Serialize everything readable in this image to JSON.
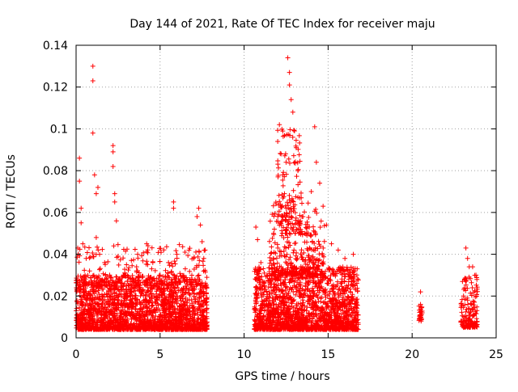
{
  "chart_data": {
    "type": "scatter",
    "title": "Day 144 of 2021, Rate Of TEC Index for receiver maju",
    "xlabel": "GPS time / hours",
    "ylabel": "ROTI / TECUs",
    "xlim": [
      0,
      25
    ],
    "ylim": [
      0,
      0.14
    ],
    "xticks": [
      0,
      5,
      10,
      15,
      20,
      25
    ],
    "xtick_labels": [
      "0",
      "5",
      "10",
      "15",
      "20",
      "25"
    ],
    "yticks": [
      0,
      0.02,
      0.04,
      0.06,
      0.08,
      0.1,
      0.12,
      0.14
    ],
    "ytick_labels": [
      "0",
      "0.02",
      "0.04",
      "0.06",
      "0.08",
      "0.1",
      "0.12",
      "0.14"
    ],
    "grid": true,
    "marker": "+",
    "color": "#ff0000",
    "series": [
      {
        "name": "ROTI",
        "points": [
          [
            0.1,
            0.043
          ],
          [
            0.2,
            0.086
          ],
          [
            0.2,
            0.075
          ],
          [
            0.3,
            0.062
          ],
          [
            0.3,
            0.055
          ],
          [
            0.4,
            0.045
          ],
          [
            0.6,
            0.038
          ],
          [
            0.8,
            0.032
          ],
          [
            1.0,
            0.13
          ],
          [
            1.0,
            0.123
          ],
          [
            1.0,
            0.098
          ],
          [
            1.1,
            0.078
          ],
          [
            1.2,
            0.069
          ],
          [
            1.3,
            0.072
          ],
          [
            1.2,
            0.048
          ],
          [
            1.4,
            0.04
          ],
          [
            1.7,
            0.036
          ],
          [
            2.0,
            0.03
          ],
          [
            2.2,
            0.092
          ],
          [
            2.2,
            0.089
          ],
          [
            2.2,
            0.082
          ],
          [
            2.3,
            0.069
          ],
          [
            2.3,
            0.065
          ],
          [
            2.4,
            0.056
          ],
          [
            2.5,
            0.039
          ],
          [
            3.0,
            0.035
          ],
          [
            3.3,
            0.025
          ],
          [
            3.6,
            0.034
          ],
          [
            4.2,
            0.045
          ],
          [
            4.5,
            0.033
          ],
          [
            5.0,
            0.03
          ],
          [
            5.5,
            0.036
          ],
          [
            5.8,
            0.065
          ],
          [
            5.8,
            0.062
          ],
          [
            6.0,
            0.04
          ],
          [
            6.5,
            0.033
          ],
          [
            7.0,
            0.038
          ],
          [
            7.2,
            0.058
          ],
          [
            7.3,
            0.062
          ],
          [
            7.4,
            0.054
          ],
          [
            7.5,
            0.046
          ],
          [
            7.6,
            0.038
          ],
          [
            10.7,
            0.053
          ],
          [
            10.8,
            0.047
          ],
          [
            11.0,
            0.036
          ],
          [
            11.2,
            0.031
          ],
          [
            11.6,
            0.037
          ],
          [
            11.8,
            0.052
          ],
          [
            12.0,
            0.094
          ],
          [
            12.1,
            0.102
          ],
          [
            12.2,
            0.088
          ],
          [
            12.3,
            0.078
          ],
          [
            12.4,
            0.069
          ],
          [
            12.5,
            0.084
          ],
          [
            12.6,
            0.134
          ],
          [
            12.7,
            0.127
          ],
          [
            12.7,
            0.121
          ],
          [
            12.8,
            0.114
          ],
          [
            12.9,
            0.108
          ],
          [
            13.0,
            0.099
          ],
          [
            13.1,
            0.091
          ],
          [
            13.2,
            0.08
          ],
          [
            13.4,
            0.067
          ],
          [
            13.5,
            0.058
          ],
          [
            13.6,
            0.05
          ],
          [
            13.8,
            0.042
          ],
          [
            14.0,
            0.07
          ],
          [
            14.2,
            0.101
          ],
          [
            14.3,
            0.084
          ],
          [
            14.5,
            0.074
          ],
          [
            14.7,
            0.063
          ],
          [
            14.9,
            0.054
          ],
          [
            15.2,
            0.045
          ],
          [
            15.6,
            0.042
          ],
          [
            16.0,
            0.038
          ],
          [
            16.5,
            0.04
          ],
          [
            20.5,
            0.022
          ],
          [
            20.5,
            0.016
          ],
          [
            20.6,
            0.012
          ],
          [
            23.2,
            0.043
          ],
          [
            23.3,
            0.038
          ],
          [
            23.4,
            0.034
          ],
          [
            23.6,
            0.034
          ],
          [
            23.8,
            0.03
          ]
        ],
        "bands": [
          {
            "x": [
              0.0,
              7.8
            ],
            "y": [
              0.004,
              0.03
            ],
            "count": 2200
          },
          {
            "x": [
              0.0,
              7.8
            ],
            "y": [
              0.025,
              0.045
            ],
            "count": 220
          },
          {
            "x": [
              10.6,
              16.8
            ],
            "y": [
              0.004,
              0.034
            ],
            "count": 1800
          },
          {
            "x": [
              11.5,
              14.8
            ],
            "y": [
              0.03,
              0.065
            ],
            "count": 320
          },
          {
            "x": [
              12.0,
              13.4
            ],
            "y": [
              0.05,
              0.1
            ],
            "count": 120
          },
          {
            "x": [
              20.4,
              20.6
            ],
            "y": [
              0.008,
              0.016
            ],
            "count": 25
          },
          {
            "x": [
              22.9,
              23.9
            ],
            "y": [
              0.005,
              0.03
            ],
            "count": 160
          }
        ]
      }
    ]
  }
}
